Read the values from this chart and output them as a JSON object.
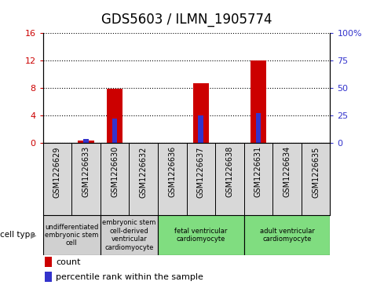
{
  "title": "GDS5603 / ILMN_1905774",
  "samples": [
    "GSM1226629",
    "GSM1226633",
    "GSM1226630",
    "GSM1226632",
    "GSM1226636",
    "GSM1226637",
    "GSM1226638",
    "GSM1226631",
    "GSM1226634",
    "GSM1226635"
  ],
  "count_values": [
    0,
    0.3,
    7.8,
    0,
    0,
    8.7,
    0,
    12.0,
    0,
    0
  ],
  "percentile_values": [
    0,
    3.0,
    22.0,
    0,
    0,
    25.0,
    0,
    27.0,
    0,
    0
  ],
  "left_ylim": [
    0,
    16
  ],
  "right_ylim": [
    0,
    100
  ],
  "left_yticks": [
    0,
    4,
    8,
    12,
    16
  ],
  "right_yticks": [
    0,
    25,
    50,
    75,
    100
  ],
  "right_yticklabels": [
    "0",
    "25",
    "50",
    "75",
    "100%"
  ],
  "count_color": "#cc0000",
  "percentile_color": "#3333cc",
  "bar_width": 0.55,
  "percentile_bar_width": 0.18,
  "cell_types": [
    {
      "label": "undifferentiated\nembryonic stem\ncell",
      "span": [
        0,
        2
      ],
      "color": "#d0d0d0"
    },
    {
      "label": "embryonic stem\ncell-derived\nventricular\ncardiomyocyte",
      "span": [
        2,
        4
      ],
      "color": "#d0d0d0"
    },
    {
      "label": "fetal ventricular\ncardiomyocyte",
      "span": [
        4,
        7
      ],
      "color": "#80dd80"
    },
    {
      "label": "adult ventricular\ncardiomyocyte",
      "span": [
        7,
        10
      ],
      "color": "#80dd80"
    }
  ],
  "group_boundaries": [
    2,
    4,
    7
  ],
  "legend_count_label": "count",
  "legend_percentile_label": "percentile rank within the sample",
  "cell_type_label": "cell type",
  "title_fontsize": 12,
  "tick_fontsize": 8,
  "sample_fontsize": 7,
  "cell_type_fontsize": 6,
  "legend_fontsize": 8
}
